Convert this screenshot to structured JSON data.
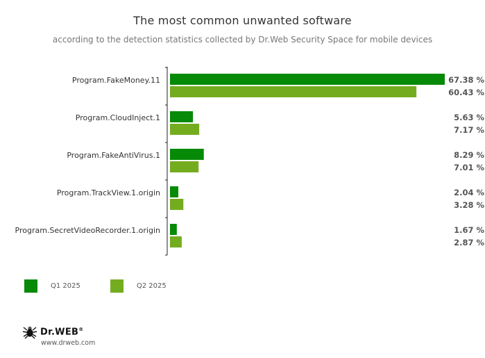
{
  "chart_data": {
    "type": "bar",
    "orientation": "horizontal",
    "title": "The most common unwanted software",
    "subtitle": "according to the detection statistics collected by Dr.Web Security Space for mobile devices",
    "categories": [
      "Program.FakeMoney.11",
      "Program.CloudInject.1",
      "Program.FakeAntiVirus.1",
      "Program.TrackView.1.origin",
      "Program.SecretVideoRecorder.1.origin"
    ],
    "series": [
      {
        "name": "Q1 2025",
        "color": "#078a07",
        "values": [
          67.38,
          5.63,
          8.29,
          2.04,
          1.67
        ]
      },
      {
        "name": "Q2 2025",
        "color": "#74ac1f",
        "values": [
          60.43,
          7.17,
          7.01,
          3.28,
          2.87
        ]
      }
    ],
    "value_suffix": " %",
    "xlim": [
      0,
      67.38
    ],
    "grid": false,
    "legend_position": "bottom-left"
  },
  "branding": {
    "logo_text": "Dr.WEB",
    "registered_mark": "®",
    "url": "www.drweb.com",
    "logo_icon": "spider-icon"
  }
}
